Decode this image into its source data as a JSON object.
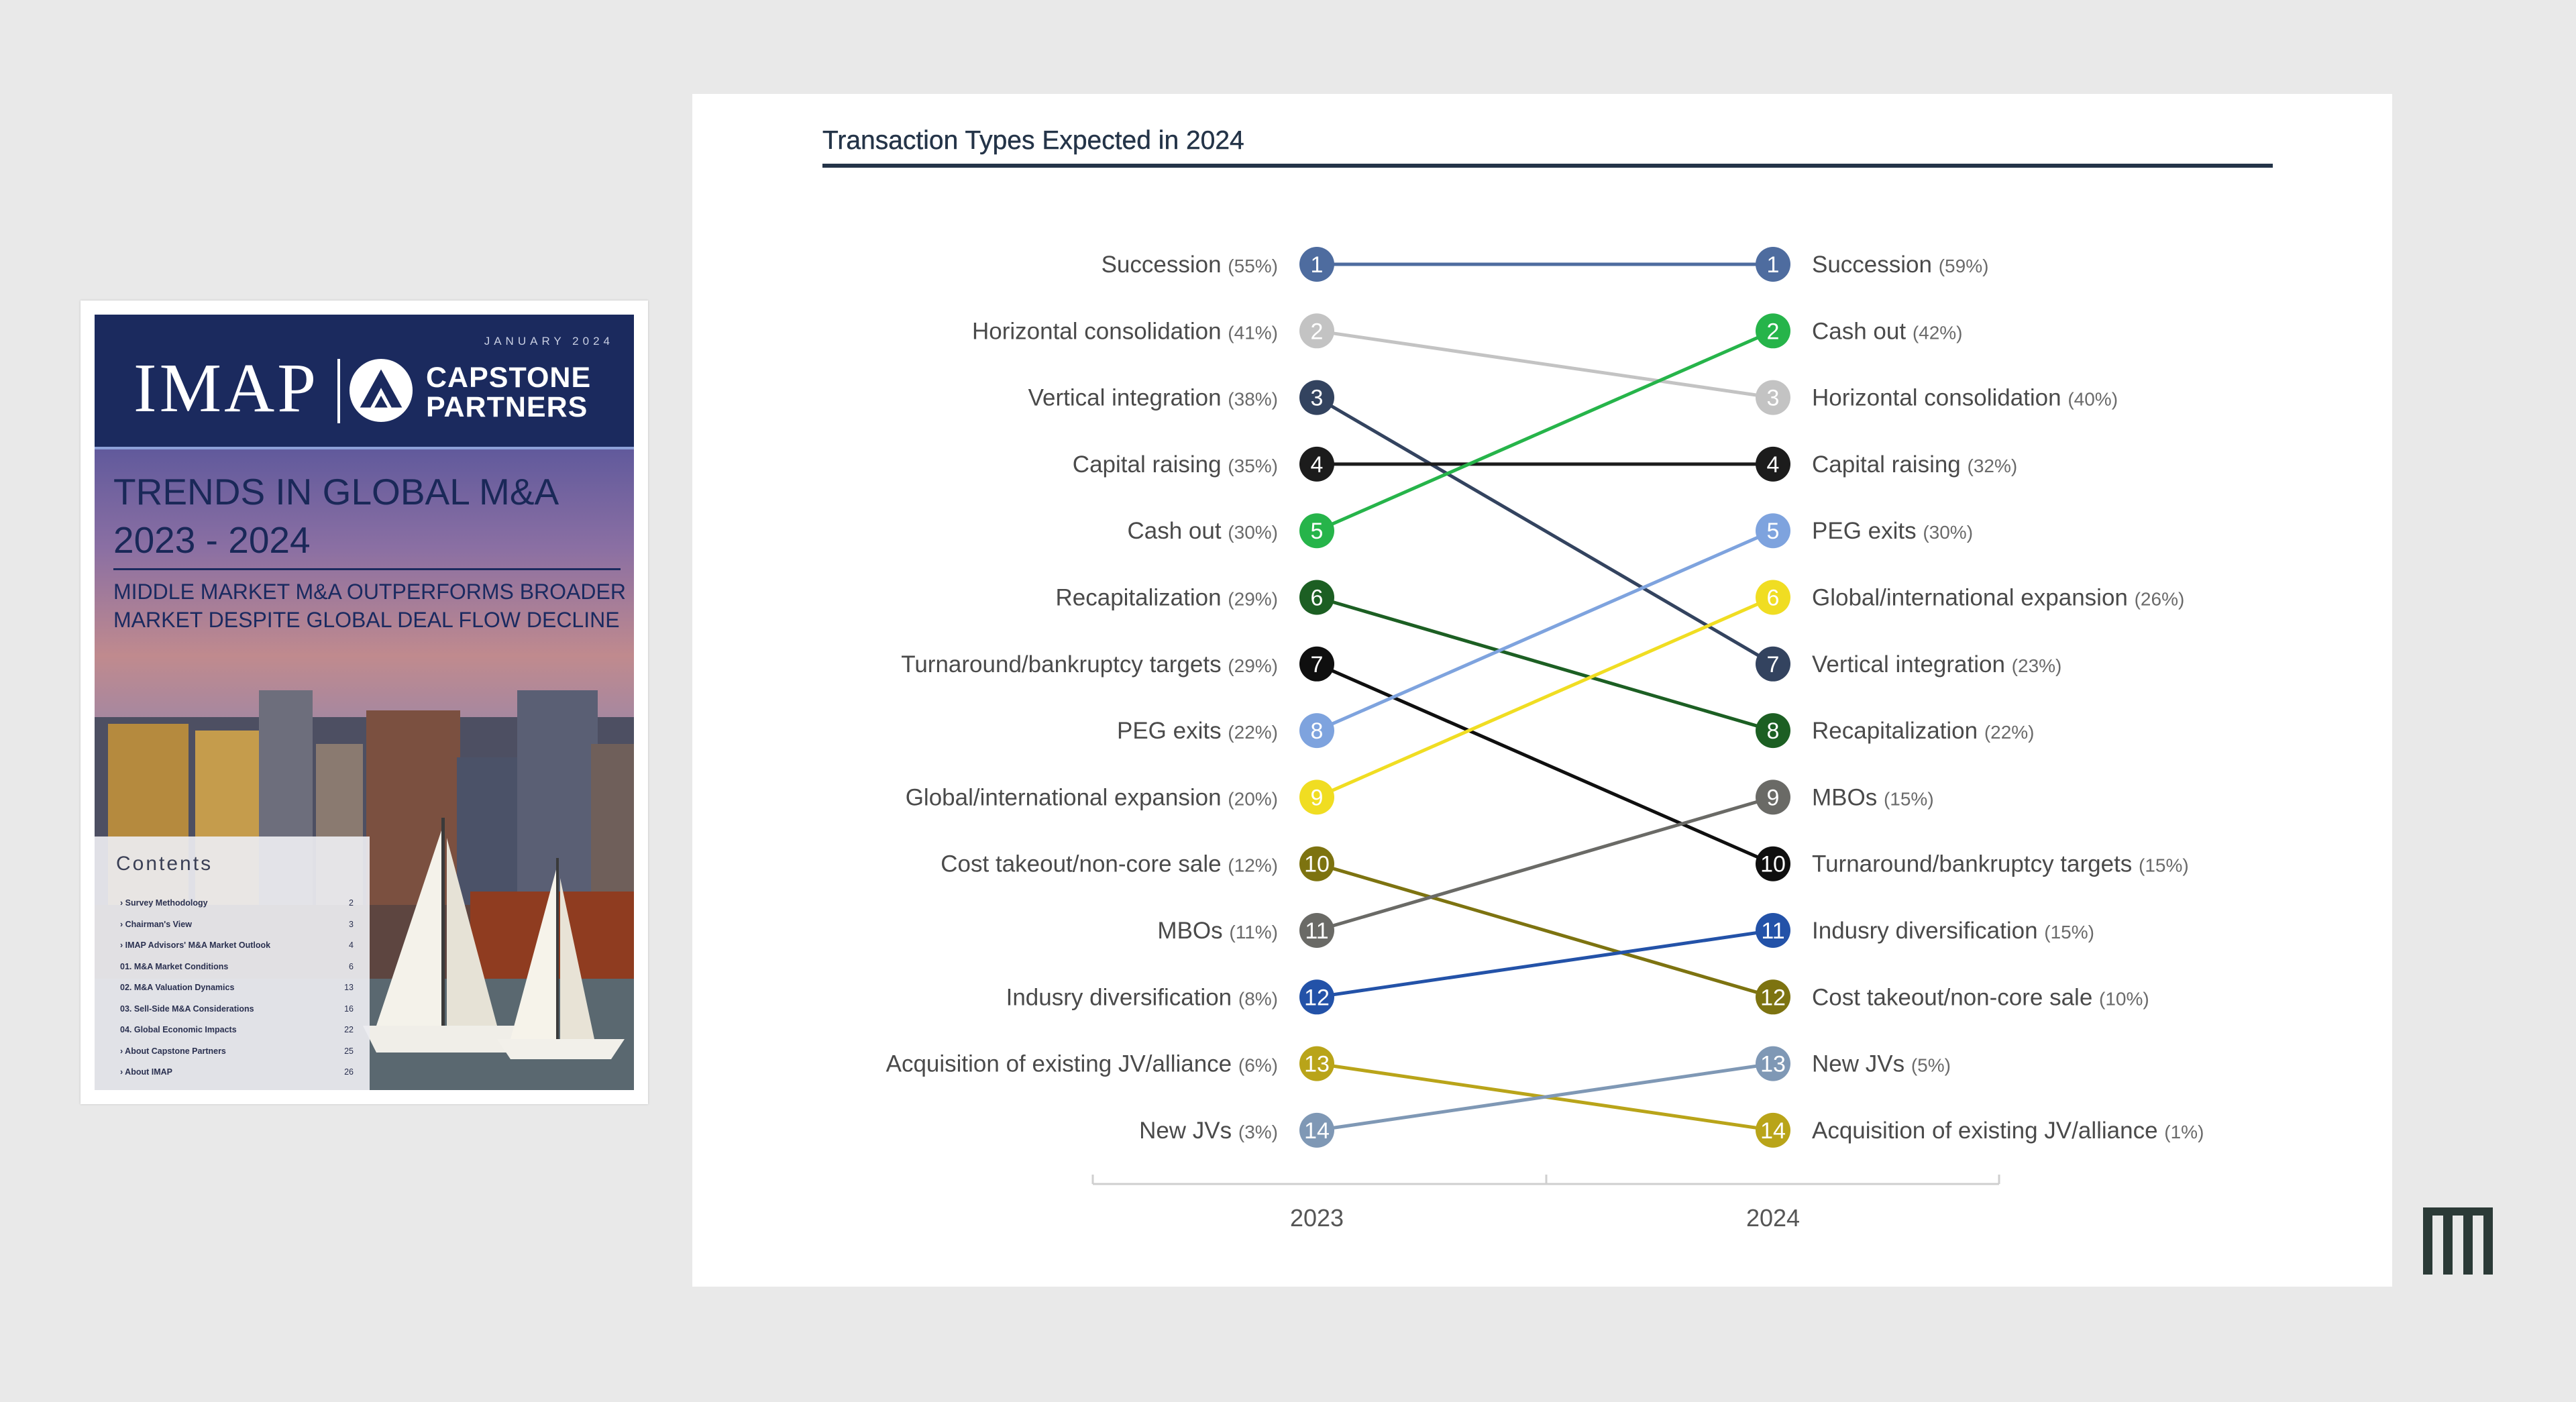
{
  "cover": {
    "date": "JANUARY 2024",
    "logo_left": "IMAP",
    "logo_right_1": "CAPSTONE",
    "logo_right_2": "PARTNERS",
    "title_1": "TRENDS IN GLOBAL M&A",
    "title_2": "2023 - 2024",
    "subtitle_1": "MIDDLE MARKET M&A OUTPERFORMS BROADER",
    "subtitle_2": "MARKET DESPITE GLOBAL DEAL FLOW DECLINE",
    "contents_title": "Contents",
    "toc": [
      {
        "title": "› Survey Methodology",
        "page": "2"
      },
      {
        "title": "› Chairman's View",
        "page": "3"
      },
      {
        "title": "› IMAP Advisors' M&A Market Outlook",
        "page": "4"
      },
      {
        "title": "01. M&A Market Conditions",
        "page": "6"
      },
      {
        "title": "02. M&A Valuation Dynamics",
        "page": "13"
      },
      {
        "title": "03. Sell-Side M&A Considerations",
        "page": "16"
      },
      {
        "title": "04. Global Economic Impacts",
        "page": "22"
      },
      {
        "title": "› About Capstone Partners",
        "page": "25"
      },
      {
        "title": "› About IMAP",
        "page": "26"
      }
    ]
  },
  "chart_data": {
    "type": "slope",
    "title": "Transaction Types Expected in 2024",
    "x_labels": [
      "2023",
      "2024"
    ],
    "items": [
      {
        "name": "Succession",
        "color": "#4e6c9f",
        "rank2023": 1,
        "pct2023": 55,
        "rank2024": 1,
        "pct2024": 59
      },
      {
        "name": "Horizontal consolidation",
        "color": "#c3c3c3",
        "rank2023": 2,
        "pct2023": 41,
        "rank2024": 3,
        "pct2024": 40
      },
      {
        "name": "Vertical integration",
        "color": "#33435f",
        "rank2023": 3,
        "pct2023": 38,
        "rank2024": 7,
        "pct2024": 23
      },
      {
        "name": "Capital raising",
        "color": "#1c1c1c",
        "rank2023": 4,
        "pct2023": 35,
        "rank2024": 4,
        "pct2024": 32
      },
      {
        "name": "Cash out",
        "color": "#26b44a",
        "rank2023": 5,
        "pct2023": 30,
        "rank2024": 2,
        "pct2024": 42
      },
      {
        "name": "Recapitalization",
        "color": "#1c5f23",
        "rank2023": 6,
        "pct2023": 29,
        "rank2024": 8,
        "pct2024": 22
      },
      {
        "name": "Turnaround/bankruptcy targets",
        "color": "#0f0f0f",
        "rank2023": 7,
        "pct2023": 29,
        "rank2024": 10,
        "pct2024": 15
      },
      {
        "name": "PEG exits",
        "color": "#7ea3de",
        "rank2023": 8,
        "pct2023": 22,
        "rank2024": 5,
        "pct2024": 30
      },
      {
        "name": "Global/international expansion",
        "color": "#f0dd22",
        "rank2023": 9,
        "pct2023": 20,
        "rank2024": 6,
        "pct2024": 26
      },
      {
        "name": "Cost takeout/non-core sale",
        "color": "#7d7310",
        "rank2023": 10,
        "pct2023": 12,
        "rank2024": 12,
        "pct2024": 10
      },
      {
        "name": "MBOs",
        "color": "#6a6a66",
        "rank2023": 11,
        "pct2023": 11,
        "rank2024": 9,
        "pct2024": 15
      },
      {
        "name": "Indusry diversification",
        "color": "#2352a8",
        "rank2023": 12,
        "pct2023": 8,
        "rank2024": 11,
        "pct2024": 15
      },
      {
        "name": "Acquisition of existing JV/alliance",
        "color": "#b9a419",
        "rank2023": 13,
        "pct2023": 6,
        "rank2024": 14,
        "pct2024": 1
      },
      {
        "name": "New JVs",
        "color": "#7f98b5",
        "rank2023": 14,
        "pct2023": 3,
        "rank2024": 13,
        "pct2024": 5
      }
    ]
  }
}
